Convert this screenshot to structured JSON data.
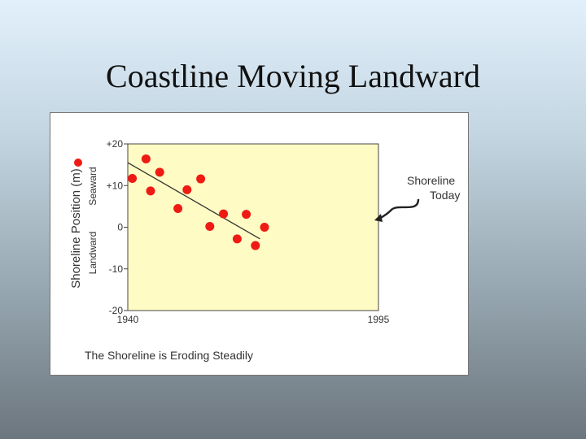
{
  "slide": {
    "title": "Coastline Moving Landward"
  },
  "chart_data": {
    "type": "scatter",
    "title": "",
    "caption": "The Shoreline is Eroding Steadily",
    "ylabel": "Shoreline Position (m)",
    "ylabel_positive": "Seaward",
    "ylabel_negative": "Landward",
    "xlim": [
      1940,
      1995
    ],
    "ylim": [
      -20,
      20
    ],
    "x_tick_labels": [
      "1940",
      "1995"
    ],
    "y_tick_labels": [
      "+20",
      "+10",
      "0",
      "-10",
      "-20"
    ],
    "y_tick_values": [
      20,
      10,
      0,
      -10,
      -20
    ],
    "grid": false,
    "legend": "none",
    "annotation": {
      "lines": [
        "Shoreline",
        "Today"
      ]
    },
    "colors": {
      "plot_bg": "#fffbc4",
      "points": "#ee1b14",
      "trend": "#333333"
    },
    "series": [
      {
        "points": [
          [
            1941,
            11.7
          ],
          [
            1944,
            16.4
          ],
          [
            1945,
            8.7
          ],
          [
            1947,
            13.2
          ],
          [
            1951,
            4.5
          ],
          [
            1953,
            9.0
          ],
          [
            1956,
            11.6
          ],
          [
            1958,
            0.2
          ],
          [
            1961,
            3.2
          ],
          [
            1964,
            -2.8
          ],
          [
            1966,
            3.1
          ],
          [
            1968,
            -4.4
          ],
          [
            1970,
            0.0
          ]
        ]
      }
    ],
    "trend_line": {
      "x": [
        1940,
        1969
      ],
      "y": [
        15.5,
        -2.8
      ]
    }
  }
}
